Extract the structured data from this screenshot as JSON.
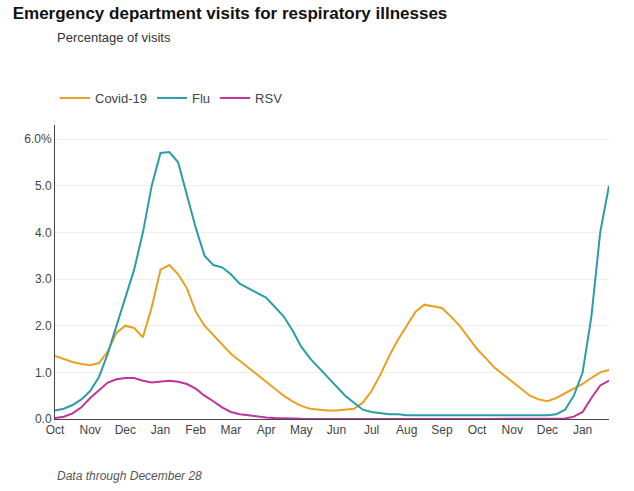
{
  "chart_data": {
    "type": "line",
    "title": "Emergency department visits for respiratory illnesses",
    "subtitle": "Percentage of visits",
    "annotations": [
      "Data through December 28"
    ],
    "x": [
      0,
      1,
      2,
      3,
      4,
      5,
      6,
      7,
      8,
      9,
      10,
      11,
      12,
      13,
      14,
      15,
      16,
      17,
      18,
      19,
      20,
      21,
      22,
      23,
      24,
      25,
      26,
      27,
      28,
      29,
      30,
      31,
      32,
      33,
      34,
      35,
      36,
      37,
      38,
      39,
      40,
      41,
      42,
      43,
      44,
      45,
      46,
      47,
      48,
      49,
      50,
      51,
      52,
      53,
      54,
      55,
      56,
      57,
      58,
      59,
      60,
      61,
      62,
      63
    ],
    "series": [
      {
        "name": "Covid-19",
        "color": "#E8A020",
        "values": [
          1.35,
          1.28,
          1.22,
          1.18,
          1.15,
          1.2,
          1.45,
          1.85,
          2.0,
          1.95,
          1.75,
          2.4,
          3.2,
          3.3,
          3.1,
          2.8,
          2.3,
          2.0,
          1.8,
          1.6,
          1.4,
          1.25,
          1.1,
          0.95,
          0.8,
          0.65,
          0.5,
          0.38,
          0.28,
          0.22,
          0.2,
          0.18,
          0.18,
          0.2,
          0.22,
          0.35,
          0.6,
          0.95,
          1.35,
          1.7,
          2.0,
          2.3,
          2.45,
          2.42,
          2.38,
          2.2,
          2.0,
          1.75,
          1.5,
          1.3,
          1.1,
          0.95,
          0.8,
          0.65,
          0.5,
          0.42,
          0.38,
          0.45,
          0.55,
          0.65,
          0.75,
          0.88,
          1.0,
          1.05
        ]
      },
      {
        "name": "Flu",
        "color": "#2B9CA8",
        "values": [
          0.18,
          0.22,
          0.3,
          0.42,
          0.6,
          0.9,
          1.4,
          2.0,
          2.6,
          3.2,
          4.0,
          5.0,
          5.7,
          5.72,
          5.5,
          4.8,
          4.1,
          3.5,
          3.3,
          3.25,
          3.1,
          2.9,
          2.8,
          2.7,
          2.6,
          2.4,
          2.2,
          1.9,
          1.55,
          1.3,
          1.1,
          0.9,
          0.7,
          0.5,
          0.35,
          0.2,
          0.15,
          0.12,
          0.1,
          0.1,
          0.08,
          0.08,
          0.08,
          0.08,
          0.07,
          0.07,
          0.07,
          0.07,
          0.07,
          0.07,
          0.07,
          0.07,
          0.07,
          0.07,
          0.07,
          0.07,
          0.08,
          0.1,
          0.2,
          0.5,
          1.0,
          2.2,
          4.0,
          5.0
        ]
      },
      {
        "name": "RSV",
        "color": "#C0339A",
        "values": [
          0.02,
          0.05,
          0.12,
          0.25,
          0.45,
          0.62,
          0.78,
          0.85,
          0.88,
          0.88,
          0.82,
          0.78,
          0.8,
          0.82,
          0.8,
          0.75,
          0.65,
          0.5,
          0.38,
          0.25,
          0.15,
          0.1,
          0.08,
          0.05,
          0.03,
          0.02,
          0.01,
          0.005,
          0.003,
          0.002,
          0.001,
          0.001,
          0.001,
          0.001,
          0.001,
          0.001,
          0.001,
          0.001,
          0.001,
          0.001,
          0.001,
          0.001,
          0.001,
          0.001,
          0.001,
          0.001,
          0.001,
          0.001,
          0.001,
          0.001,
          0.001,
          0.001,
          0.001,
          0.001,
          0.001,
          0.001,
          0.001,
          0.005,
          0.01,
          0.05,
          0.15,
          0.45,
          0.72,
          0.82
        ]
      }
    ],
    "xlim": [
      0,
      63
    ],
    "xticks": [
      {
        "value": 0,
        "label": "Oct"
      },
      {
        "value": 4,
        "label": "Nov"
      },
      {
        "value": 8,
        "label": "Dec"
      },
      {
        "value": 12,
        "label": "Jan"
      },
      {
        "value": 16,
        "label": "Feb"
      },
      {
        "value": 20,
        "label": "Mar"
      },
      {
        "value": 24,
        "label": "Apr"
      },
      {
        "value": 28,
        "label": "May"
      },
      {
        "value": 32,
        "label": "Jun"
      },
      {
        "value": 36,
        "label": "Jul"
      },
      {
        "value": 40,
        "label": "Aug"
      },
      {
        "value": 44,
        "label": "Sep"
      },
      {
        "value": 48,
        "label": "Oct"
      },
      {
        "value": 52,
        "label": "Nov"
      },
      {
        "value": 56,
        "label": "Dec"
      },
      {
        "value": 60,
        "label": "Jan"
      }
    ],
    "ylim": [
      0,
      6.3
    ],
    "yticks": [
      {
        "value": 0.0,
        "label": "0.0"
      },
      {
        "value": 1.0,
        "label": "1.0"
      },
      {
        "value": 2.0,
        "label": "2.0"
      },
      {
        "value": 3.0,
        "label": "3.0"
      },
      {
        "value": 4.0,
        "label": "4.0"
      },
      {
        "value": 5.0,
        "label": "5.0"
      },
      {
        "value": 6.0,
        "label": "6.0%"
      }
    ],
    "grid": "y",
    "legend": "upper left"
  }
}
